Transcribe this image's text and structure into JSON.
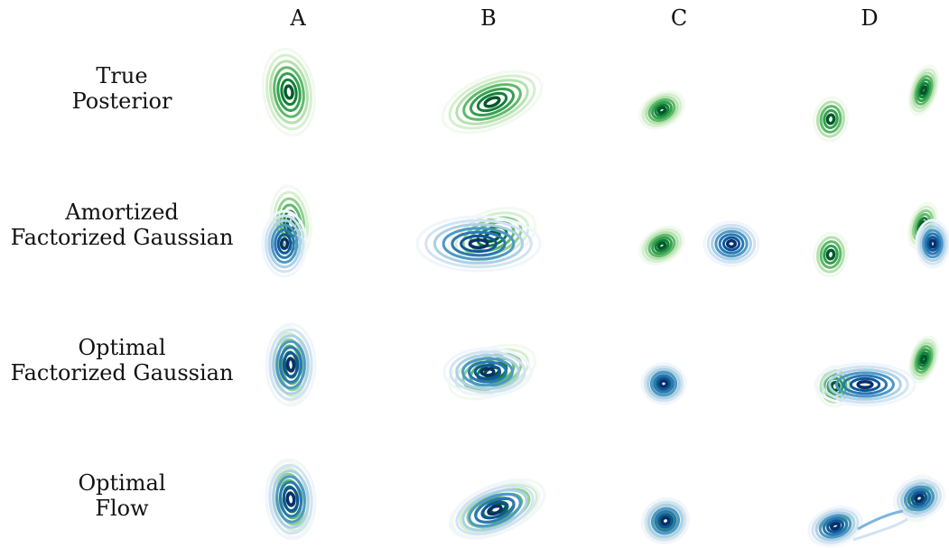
{
  "columns": [
    "A",
    "B",
    "C",
    "D"
  ],
  "rows": [
    [
      "True",
      "Posterior"
    ],
    [
      "Amortized",
      "Factorized Gaussian"
    ],
    [
      "Optimal",
      "Factorized Gaussian"
    ],
    [
      "Optimal",
      "Flow"
    ]
  ],
  "colors": {
    "true_posterior": [
      "#f2faf0",
      "#d5efcf",
      "#b5e1ae",
      "#8fd08f",
      "#5fb96b",
      "#34a04f",
      "#12803a",
      "#00592a"
    ],
    "approximation": [
      "#f0f6fc",
      "#d2e3f3",
      "#acd0e6",
      "#7fb5d9",
      "#4e98c6",
      "#2b77b4",
      "#0f569a",
      "#08306b"
    ]
  }
}
